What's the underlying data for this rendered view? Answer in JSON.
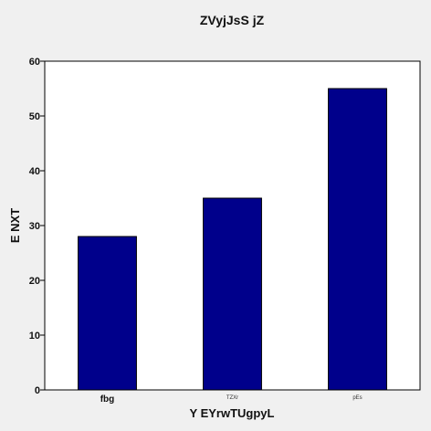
{
  "chart_data": {
    "type": "bar",
    "title": "ZVyjJsS jZ",
    "xlabel": "Y  EYrwTUgpyL",
    "ylabel": "E  NXT",
    "categories": [
      "fbg",
      "TZXr",
      "pEs"
    ],
    "values": [
      28,
      35,
      55
    ],
    "ylim": [
      0,
      60
    ],
    "yticks": [
      0,
      10,
      20,
      30,
      40,
      50,
      60
    ],
    "grid": false,
    "bar_color": "#00008b",
    "background_color": "#f0f0f0",
    "plot_background_color": "#ffffff"
  }
}
